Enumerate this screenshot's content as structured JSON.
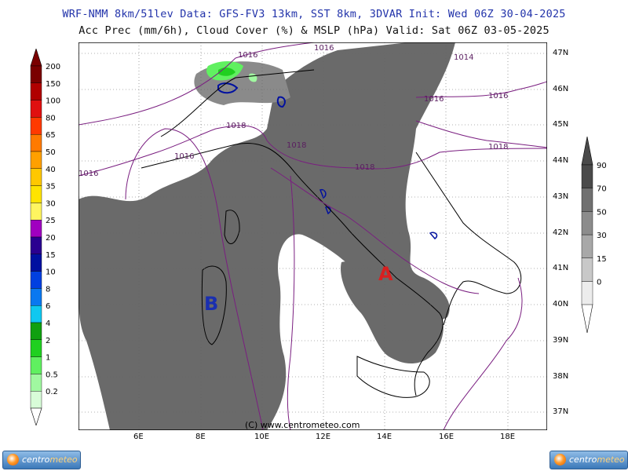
{
  "header": {
    "line1": "WRF-NMM 8km/51lev  Data: GFS-FV3 13km, SST 8km, 3DVAR  Init: Wed 06Z 30-04-2025",
    "line2": "Acc Prec (mm/6h), Cloud Cover (%) & MSLP (hPa)  Valid: Sat 06Z 03-05-2025"
  },
  "map": {
    "lon_labels": [
      "6E",
      "8E",
      "10E",
      "12E",
      "14E",
      "16E",
      "18E"
    ],
    "lat_labels": [
      "47N",
      "46N",
      "45N",
      "44N",
      "43N",
      "42N",
      "41N",
      "40N",
      "39N",
      "38N",
      "37N"
    ],
    "isobar_labels": [
      "1016",
      "1014",
      "1016",
      "1016",
      "1018",
      "1018",
      "1018",
      "1016",
      "1018",
      "1016",
      "1016"
    ],
    "pressure_centers": {
      "high": "A",
      "low": "B"
    },
    "credit": "(C) www.centrometeo.com"
  },
  "precip_scale": {
    "labels": [
      "200",
      "150",
      "100",
      "80",
      "65",
      "50",
      "40",
      "35",
      "30",
      "25",
      "20",
      "15",
      "10",
      "8",
      "6",
      "4",
      "2",
      "1",
      "0.5",
      "0.2"
    ],
    "colors": [
      "#7a0000",
      "#b00000",
      "#e01010",
      "#ff3a00",
      "#ff7a00",
      "#ffa000",
      "#ffc800",
      "#ffe400",
      "#fff560",
      "#a000c0",
      "#2a0090",
      "#0010a0",
      "#0040e0",
      "#0a78f0",
      "#10c8f0",
      "#10a010",
      "#20d020",
      "#60f060",
      "#a0f8a0",
      "#d8fcd8"
    ]
  },
  "cloud_scale": {
    "labels": [
      "90",
      "70",
      "50",
      "30",
      "15",
      "0"
    ],
    "colors": [
      "#4a4a4a",
      "#707070",
      "#8c8c8c",
      "#a8a8a8",
      "#c8c8c8",
      "#ececec"
    ]
  },
  "logos": {
    "left_a": "centro",
    "left_b": "meteo",
    "right_a": "centro",
    "right_b": "meteo"
  }
}
